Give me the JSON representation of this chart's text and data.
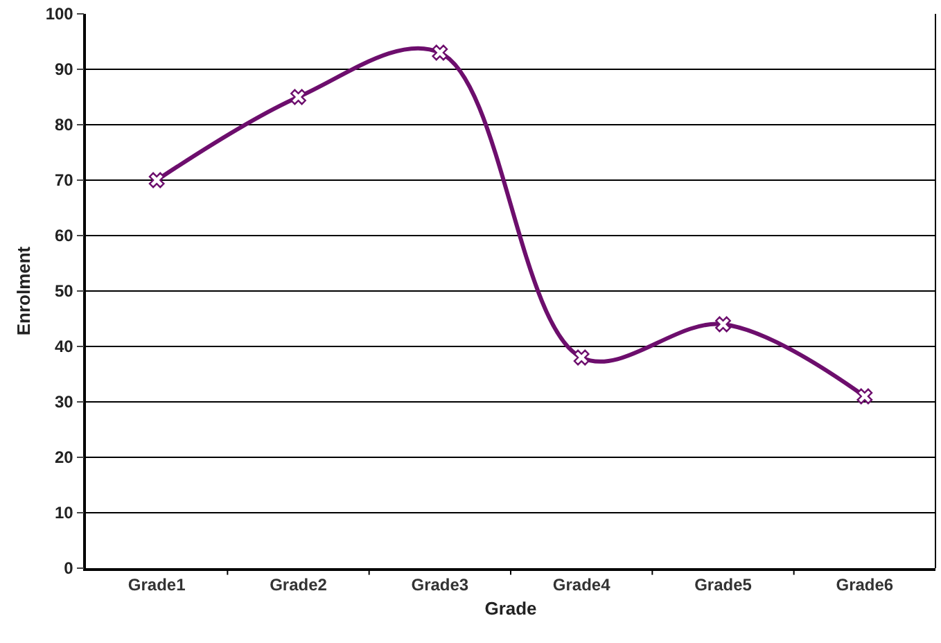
{
  "chart_data": {
    "type": "line",
    "xlabel": "Grade",
    "ylabel": "Enrolment",
    "categories": [
      "Grade1",
      "Grade2",
      "Grade3",
      "Grade4",
      "Grade5",
      "Grade6"
    ],
    "values": [
      70,
      85,
      93,
      38,
      44,
      31
    ],
    "color": "#6d0e6d",
    "ylim": [
      0,
      100
    ],
    "yticks": [
      0,
      10,
      20,
      30,
      40,
      50,
      60,
      70,
      80,
      90,
      100
    ],
    "grid": "y",
    "marker": "cross",
    "line_style": "solid"
  }
}
